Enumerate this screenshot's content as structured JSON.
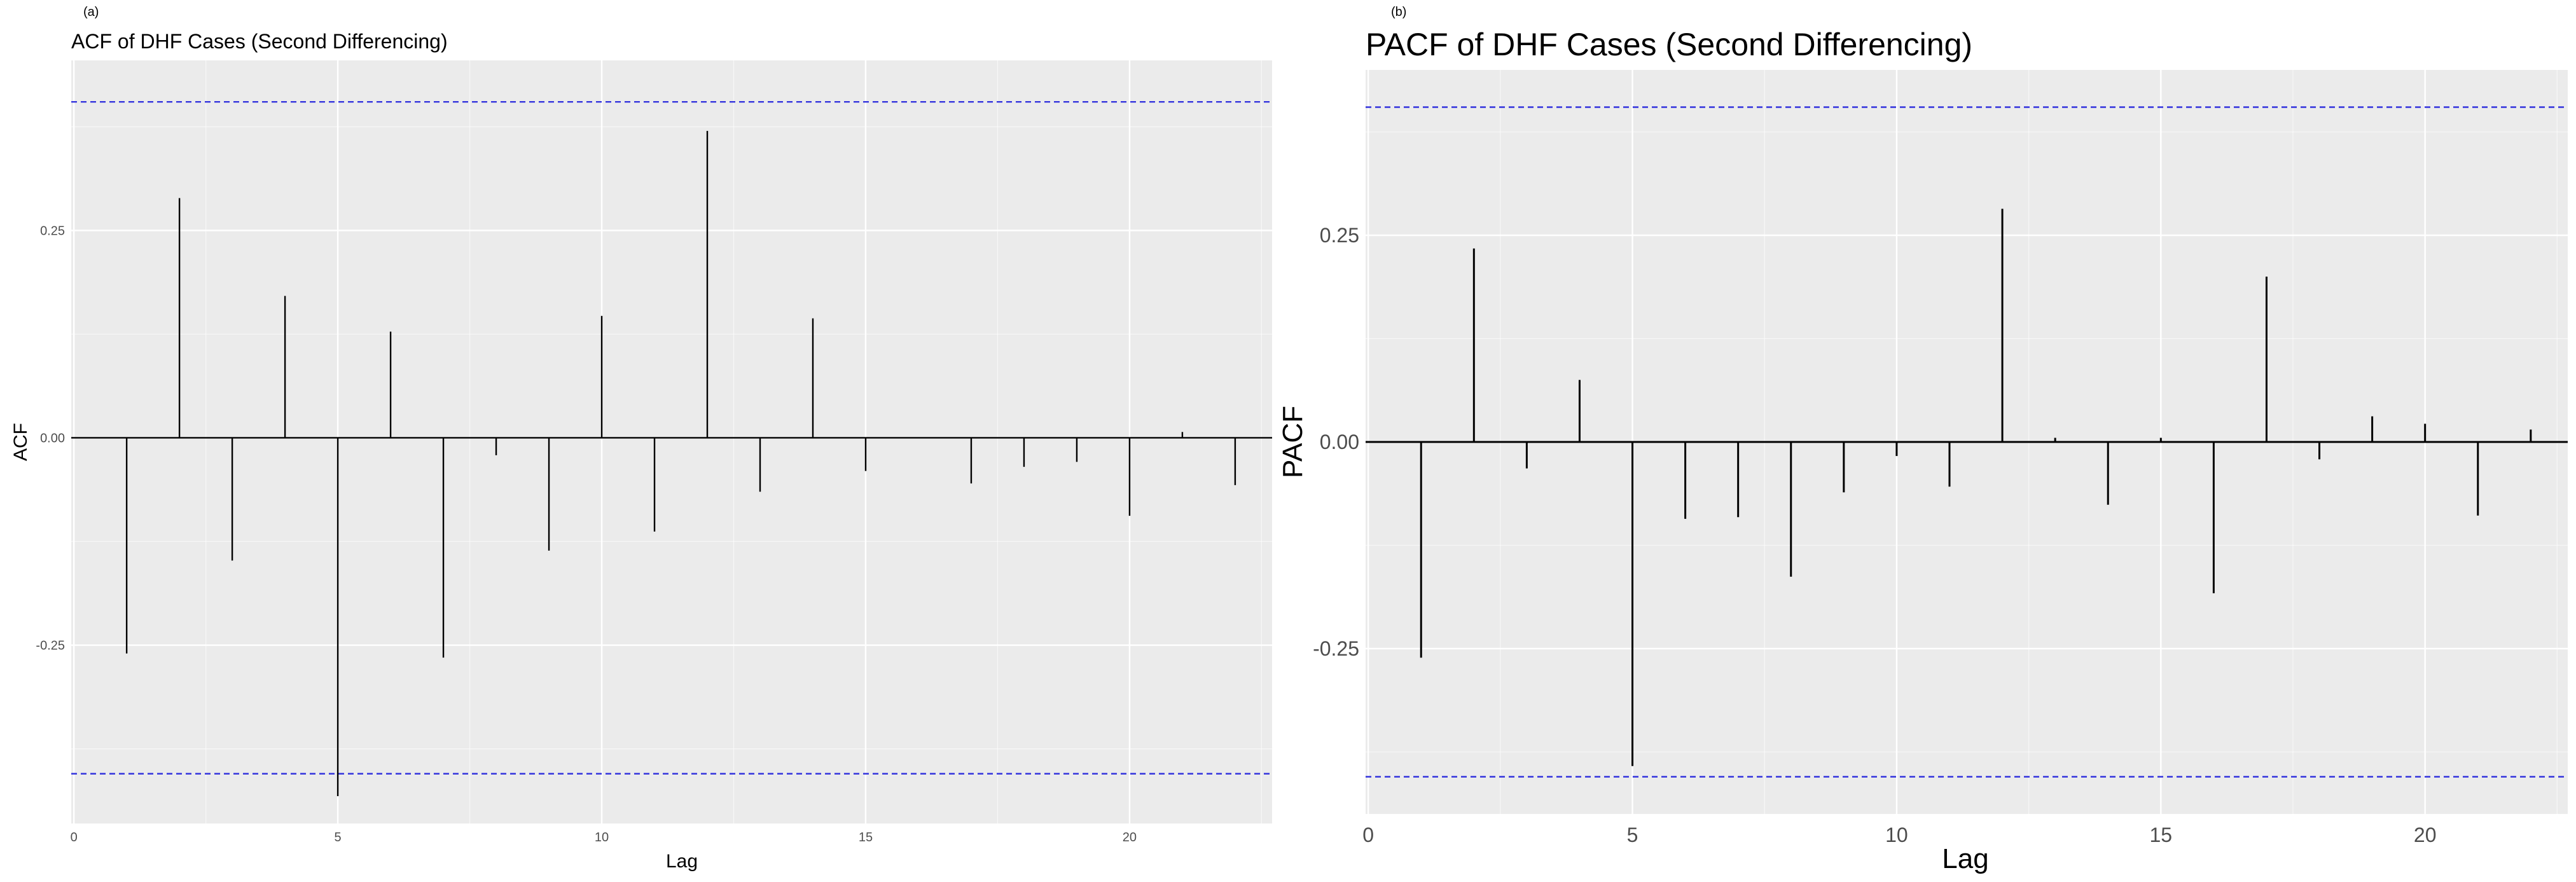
{
  "chart_data": [
    {
      "type": "bar",
      "panel_label": "(a)",
      "title": "ACF of DHF Cases (Second Differencing)",
      "xlabel": "Lag",
      "ylabel": "ACF",
      "xlim": [
        -0.05,
        22.7
      ],
      "ylim": [
        -0.465,
        0.455
      ],
      "x_ticks": [
        0,
        5,
        10,
        15,
        20
      ],
      "x_tick_labels": [
        "0",
        "5",
        "10",
        "15",
        "20"
      ],
      "y_ticks": [
        -0.25,
        0.0,
        0.25
      ],
      "y_tick_labels": [
        "-0.25",
        "0.00",
        "0.25"
      ],
      "confidence_bounds": [
        0.405,
        -0.405
      ],
      "grid": true,
      "lags": [
        1,
        2,
        3,
        4,
        5,
        6,
        7,
        8,
        9,
        10,
        11,
        12,
        13,
        14,
        15,
        16,
        17,
        18,
        19,
        20,
        21,
        22
      ],
      "values": [
        -0.26,
        0.289,
        -0.148,
        0.171,
        -0.432,
        0.128,
        -0.265,
        -0.021,
        -0.136,
        0.147,
        -0.113,
        0.37,
        -0.065,
        0.144,
        -0.04,
        0.0,
        -0.055,
        -0.035,
        -0.029,
        -0.094,
        0.007,
        -0.057
      ]
    },
    {
      "type": "bar",
      "panel_label": "(b)",
      "title": "PACF of DHF Cases (Second Differencing)",
      "xlabel": "Lag",
      "ylabel": "PACF",
      "xlim": [
        -0.05,
        22.7
      ],
      "ylim": [
        -0.45,
        0.45
      ],
      "x_ticks": [
        0,
        5,
        10,
        15,
        20
      ],
      "x_tick_labels": [
        "0",
        "5",
        "10",
        "15",
        "20"
      ],
      "y_ticks": [
        -0.25,
        0.0,
        0.25
      ],
      "y_tick_labels": [
        "-0.25",
        "0.00",
        "0.25"
      ],
      "confidence_bounds": [
        0.405,
        -0.405
      ],
      "grid": true,
      "lags": [
        1,
        2,
        3,
        4,
        5,
        6,
        7,
        8,
        9,
        10,
        11,
        12,
        13,
        14,
        15,
        16,
        17,
        18,
        19,
        20,
        21,
        22
      ],
      "values": [
        -0.261,
        0.234,
        -0.032,
        0.075,
        -0.392,
        -0.093,
        -0.091,
        -0.163,
        -0.061,
        -0.017,
        -0.054,
        0.282,
        0.005,
        -0.076,
        0.005,
        -0.183,
        0.2,
        -0.021,
        0.031,
        0.022,
        -0.089,
        0.015
      ]
    }
  ],
  "colors": {
    "panel_background": "#ebebeb",
    "grid_major": "#ffffff",
    "spike": "#000000",
    "bound_line": "#3333dd",
    "text": "#1a1a1a"
  }
}
